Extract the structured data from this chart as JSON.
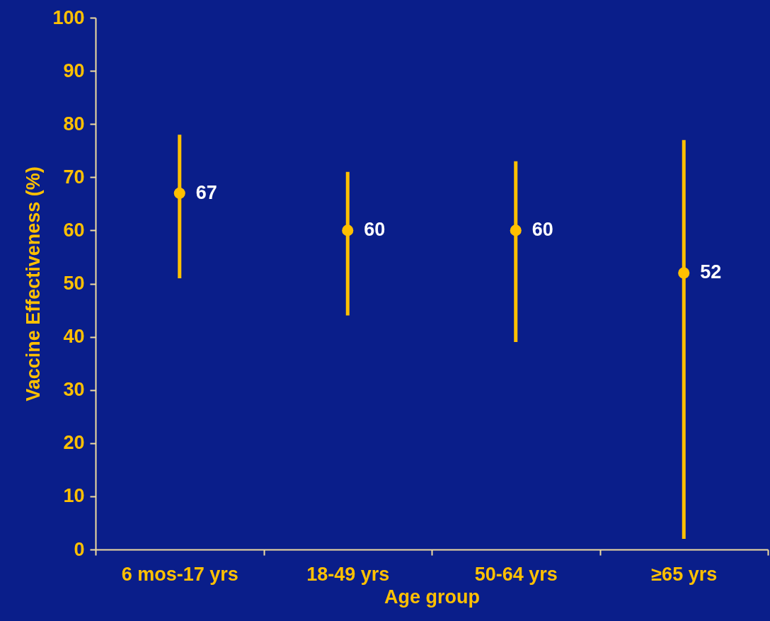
{
  "chart_data": {
    "type": "scatter",
    "xlabel": "Age group",
    "ylabel": "Vaccine Effectiveness (%)",
    "categories": [
      "6 mos-17 yrs",
      "18-49 yrs",
      "50-64 yrs",
      "≥65 yrs"
    ],
    "values": [
      67,
      60,
      60,
      52
    ],
    "errors": [
      [
        51,
        78
      ],
      [
        44,
        71
      ],
      [
        39,
        73
      ],
      [
        2,
        77
      ]
    ],
    "color": "#ffc000",
    "marker": "circle",
    "data_labels": true,
    "grid": false,
    "ylim": [
      0,
      100
    ],
    "yticks": [
      0,
      10,
      20,
      30,
      40,
      50,
      60,
      70,
      80,
      90,
      100
    ]
  }
}
